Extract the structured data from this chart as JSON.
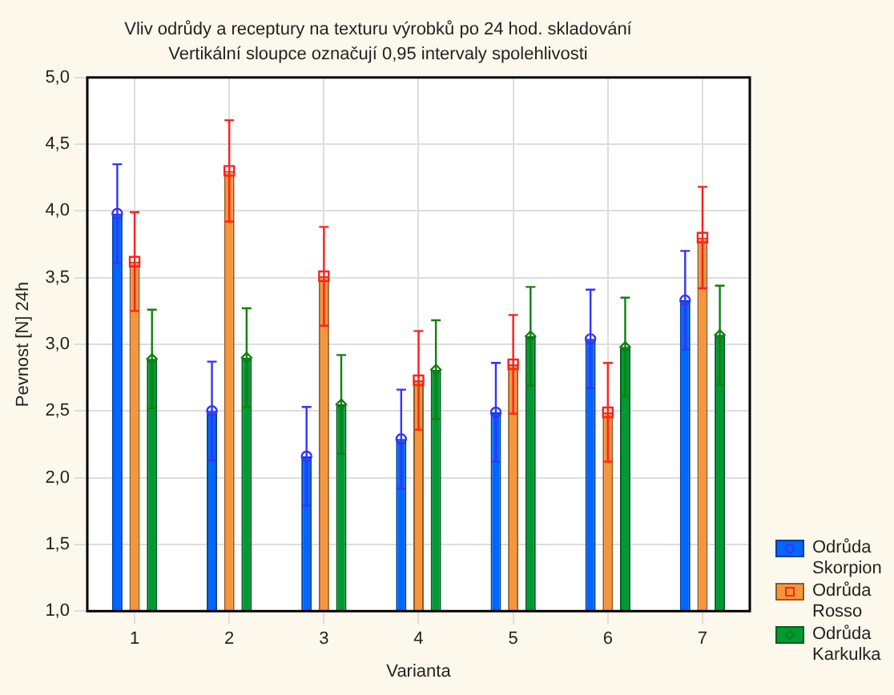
{
  "chart_data": {
    "type": "bar",
    "title": "Vliv odrůdy a receptury na texturu výrobků po 24 hod. skladování",
    "subtitle": "Vertikální sloupce označují 0,95 intervaly spolehlivosti",
    "xlabel": "Varianta",
    "ylabel": "Pevnost [N] 24h",
    "categories": [
      "1",
      "2",
      "3",
      "4",
      "5",
      "6",
      "7"
    ],
    "series": [
      {
        "name": "Odrůda Skorpion",
        "color": "#0066ff",
        "values": [
          3.98,
          2.5,
          2.16,
          2.29,
          2.49,
          3.04,
          3.33
        ]
      },
      {
        "name": "Odrůda Rosso",
        "color": "#f5963c",
        "values": [
          3.62,
          4.3,
          3.51,
          2.73,
          2.85,
          2.49,
          3.8
        ]
      },
      {
        "name": "Odrůda Karkulka",
        "color": "#009933",
        "values": [
          2.89,
          2.9,
          2.55,
          2.81,
          3.06,
          2.98,
          3.07
        ]
      },
      {
        "type": "scatter",
        "color": "#3333ff",
        "marker": "circle",
        "x": [
          "1",
          "2",
          "3",
          "4",
          "5",
          "6",
          "7"
        ],
        "values": [
          3.98,
          2.5,
          2.16,
          2.29,
          2.49,
          3.04,
          3.33
        ],
        "errors": [
          0.37,
          0.37,
          0.37,
          0.37,
          0.37,
          0.37,
          0.37
        ]
      },
      {
        "type": "scatter",
        "color": "#ff2020",
        "marker": "square",
        "x": [
          "1",
          "2",
          "3",
          "4",
          "5",
          "6",
          "7"
        ],
        "values": [
          3.62,
          4.3,
          3.51,
          2.73,
          2.85,
          2.49,
          3.8
        ],
        "errors": [
          0.37,
          0.38,
          0.37,
          0.37,
          0.37,
          0.37,
          0.38
        ]
      },
      {
        "type": "scatter",
        "color": "#108010",
        "marker": "diamond",
        "x": [
          "1",
          "2",
          "3",
          "4",
          "5",
          "6",
          "7"
        ],
        "values": [
          2.89,
          2.9,
          2.55,
          2.81,
          3.06,
          2.98,
          3.07
        ],
        "errors": [
          0.37,
          0.37,
          0.37,
          0.37,
          0.37,
          0.37,
          0.37
        ]
      }
    ],
    "ylim": [
      1,
      5
    ],
    "yticks": [
      {
        "value": 1,
        "label": "1,0"
      },
      {
        "value": 1.5,
        "label": "1,5"
      },
      {
        "value": 2,
        "label": "2,0"
      },
      {
        "value": 2.5,
        "label": "2,5"
      },
      {
        "value": 3,
        "label": "3,0"
      },
      {
        "value": 3.5,
        "label": "3,5"
      },
      {
        "value": 4,
        "label": "4,0"
      },
      {
        "value": 4.5,
        "label": "4,5"
      },
      {
        "value": 5,
        "label": "5,0"
      }
    ],
    "grid": true,
    "legend": "bottom right"
  }
}
